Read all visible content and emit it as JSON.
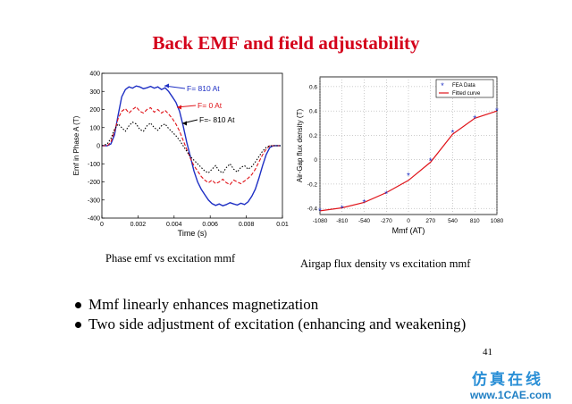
{
  "slide": {
    "title": "Back EMF and field adjustability",
    "page_number": "41",
    "bullets": [
      "Mmf linearly enhances magnetization",
      "Two side adjustment of excitation (enhancing and weakening)"
    ],
    "watermark_text": "仿真在线",
    "watermark_url": "www.1CAE.com",
    "colors": {
      "title": "#d4001a",
      "blue_series": "#1e2fc4",
      "red_series": "#e0141a",
      "watermark": "#2a8fd6"
    }
  },
  "chart_data": [
    {
      "type": "line",
      "caption": "Phase emf vs excitation mmf",
      "xlabel": "Time (s)",
      "ylabel": "Emf in Phase A (T)",
      "xlim": [
        0,
        0.01
      ],
      "ylim": [
        -400,
        400
      ],
      "xticks": [
        0,
        0.002,
        0.004,
        0.006,
        0.008,
        0.01
      ],
      "xtick_labels": [
        "0",
        "0.002",
        "0.004",
        "0.006",
        "0.008",
        "0.01"
      ],
      "yticks": [
        -400,
        -300,
        -200,
        -100,
        0,
        100,
        200,
        300,
        400
      ],
      "ytick_labels": [
        "-400",
        "-300",
        "-200",
        "-100",
        "0",
        "100",
        "200",
        "300",
        "400"
      ],
      "grid": false,
      "series": [
        {
          "name": "F= 810 At",
          "color": "#1e2fc4",
          "style": "solid",
          "x": [
            0,
            0.0003,
            0.0005,
            0.0007,
            0.0009,
            0.0011,
            0.0013,
            0.0015,
            0.0017,
            0.0019,
            0.0021,
            0.0023,
            0.0025,
            0.0027,
            0.0029,
            0.0031,
            0.0033,
            0.0035,
            0.0037,
            0.0039,
            0.0041,
            0.0043,
            0.0045,
            0.0047,
            0.0049,
            0.0051,
            0.0053,
            0.0055,
            0.0057,
            0.0059,
            0.0061,
            0.0063,
            0.0065,
            0.0067,
            0.0069,
            0.0071,
            0.0073,
            0.0075,
            0.0077,
            0.0079,
            0.0081,
            0.0083,
            0.0085,
            0.0087,
            0.0089,
            0.0091,
            0.0093,
            0.0095,
            0.0097,
            0.0099
          ],
          "y": [
            0,
            0,
            10,
            60,
            170,
            270,
            310,
            325,
            318,
            330,
            325,
            315,
            320,
            328,
            318,
            325,
            310,
            320,
            300,
            270,
            240,
            190,
            110,
            20,
            -60,
            -140,
            -200,
            -240,
            -270,
            -300,
            -320,
            -330,
            -322,
            -332,
            -325,
            -315,
            -322,
            -328,
            -318,
            -325,
            -310,
            -280,
            -240,
            -180,
            -110,
            -50,
            -10,
            0,
            0,
            0
          ]
        },
        {
          "name": "F= 0 At",
          "color": "#e0141a",
          "style": "dashed",
          "x": [
            0,
            0.0003,
            0.0005,
            0.0007,
            0.0009,
            0.0011,
            0.0013,
            0.0015,
            0.0017,
            0.0019,
            0.0021,
            0.0023,
            0.0025,
            0.0027,
            0.0029,
            0.0031,
            0.0033,
            0.0035,
            0.0037,
            0.0039,
            0.0041,
            0.0043,
            0.0045,
            0.0047,
            0.0049,
            0.0051,
            0.0053,
            0.0055,
            0.0057,
            0.0059,
            0.0061,
            0.0063,
            0.0065,
            0.0067,
            0.0069,
            0.0071,
            0.0073,
            0.0075,
            0.0077,
            0.0079,
            0.0081,
            0.0083,
            0.0085,
            0.0087,
            0.0089,
            0.0091,
            0.0093,
            0.0095,
            0.0097,
            0.0099
          ],
          "y": [
            0,
            0,
            20,
            80,
            150,
            190,
            205,
            180,
            200,
            215,
            190,
            180,
            200,
            210,
            185,
            200,
            180,
            195,
            175,
            150,
            120,
            80,
            30,
            -20,
            -70,
            -110,
            -140,
            -170,
            -190,
            -205,
            -190,
            -210,
            -200,
            -185,
            -205,
            -215,
            -190,
            -200,
            -210,
            -195,
            -180,
            -160,
            -130,
            -90,
            -50,
            -20,
            0,
            0,
            0,
            0
          ]
        },
        {
          "name": "F=- 810 At",
          "color": "#000000",
          "style": "dotted",
          "x": [
            0,
            0.0003,
            0.0005,
            0.0007,
            0.0009,
            0.0011,
            0.0013,
            0.0015,
            0.0017,
            0.0019,
            0.0021,
            0.0023,
            0.0025,
            0.0027,
            0.0029,
            0.0031,
            0.0033,
            0.0035,
            0.0037,
            0.0039,
            0.0041,
            0.0043,
            0.0045,
            0.0047,
            0.0049,
            0.0051,
            0.0053,
            0.0055,
            0.0057,
            0.0059,
            0.0061,
            0.0063,
            0.0065,
            0.0067,
            0.0069,
            0.0071,
            0.0073,
            0.0075,
            0.0077,
            0.0079,
            0.0081,
            0.0083,
            0.0085,
            0.0087,
            0.0089,
            0.0091,
            0.0093,
            0.0095,
            0.0097,
            0.0099
          ],
          "y": [
            0,
            10,
            40,
            90,
            120,
            100,
            80,
            110,
            130,
            120,
            90,
            80,
            110,
            125,
            100,
            85,
            110,
            120,
            95,
            75,
            55,
            30,
            0,
            -30,
            -60,
            -80,
            -100,
            -120,
            -140,
            -150,
            -130,
            -110,
            -140,
            -150,
            -120,
            -100,
            -130,
            -145,
            -120,
            -110,
            -130,
            -115,
            -90,
            -60,
            -30,
            -10,
            0,
            0,
            0,
            0
          ]
        }
      ]
    },
    {
      "type": "line",
      "caption": "Airgap flux density vs excitation mmf",
      "xlabel": "Mmf (AT)",
      "ylabel": "Air-Gap flux density (T)",
      "xlim": [
        -1080,
        1080
      ],
      "ylim": [
        -0.45,
        0.68
      ],
      "xticks": [
        -1080,
        -810,
        -540,
        -270,
        0,
        270,
        540,
        810,
        1080
      ],
      "xtick_labels": [
        "-1080",
        "-810",
        "-540",
        "-270",
        "0",
        "270",
        "540",
        "810",
        "1080"
      ],
      "yticks": [
        -0.4,
        -0.2,
        0,
        0.2,
        0.4,
        0.6
      ],
      "ytick_labels": [
        "-0.4",
        "-0.2",
        "0",
        "0.2",
        "0.4",
        "0.6"
      ],
      "grid": true,
      "legend": "top-right",
      "series": [
        {
          "name": "FEA Data",
          "color": "#1e2fc4",
          "style": "markers",
          "x": [
            -1080,
            -810,
            -540,
            -270,
            0,
            270,
            540,
            810,
            1080
          ],
          "y": [
            -0.42,
            -0.4,
            -0.35,
            -0.28,
            -0.13,
            -0.01,
            0.22,
            0.34,
            0.4
          ]
        },
        {
          "name": "Fitted curve",
          "color": "#e0141a",
          "style": "solid",
          "x": [
            -1080,
            -810,
            -540,
            -270,
            0,
            270,
            540,
            810,
            1080
          ],
          "y": [
            -0.42,
            -0.395,
            -0.35,
            -0.27,
            -0.17,
            -0.02,
            0.21,
            0.34,
            0.4
          ]
        }
      ]
    }
  ]
}
